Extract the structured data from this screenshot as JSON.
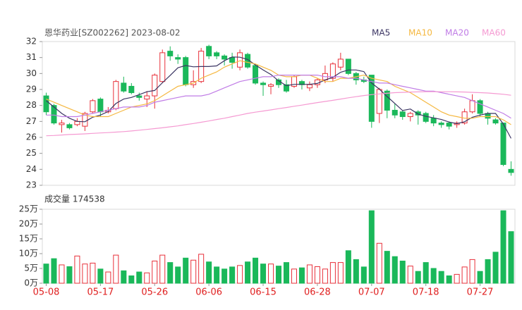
{
  "chart_data": {
    "type": "candlestick",
    "title": "恩华药业[SZ002262] 2023-08-02",
    "volume_title": "成交量 174538",
    "categories": [
      "05-08",
      null,
      null,
      null,
      null,
      null,
      null,
      "05-17",
      null,
      null,
      null,
      null,
      null,
      null,
      "05-26",
      null,
      null,
      null,
      null,
      null,
      null,
      "06-06",
      null,
      null,
      null,
      null,
      null,
      null,
      "06-15",
      null,
      null,
      null,
      null,
      null,
      null,
      "06-28",
      null,
      null,
      null,
      null,
      null,
      null,
      "07-07",
      null,
      null,
      null,
      null,
      null,
      null,
      "07-18",
      null,
      null,
      null,
      null,
      null,
      null,
      "07-27",
      null,
      null,
      null,
      null
    ],
    "open": [
      28.6,
      28.0,
      26.8,
      26.8,
      26.8,
      26.7,
      27.6,
      28.4,
      27.6,
      27.8,
      29.4,
      29.2,
      28.6,
      28.4,
      28.6,
      29.5,
      31.4,
      31.0,
      31.0,
      29.3,
      29.5,
      31.7,
      31.3,
      31.1,
      31.0,
      30.4,
      31.2,
      30.5,
      29.4,
      29.2,
      29.6,
      29.3,
      29.2,
      29.5,
      29.1,
      29.3,
      29.6,
      29.7,
      30.4,
      30.9,
      30.0,
      29.6,
      29.9,
      27.5,
      28.9,
      27.7,
      27.6,
      27.3,
      27.6,
      27.5,
      27.2,
      26.9,
      26.9,
      26.8,
      26.9,
      27.6,
      28.3,
      27.5,
      27.1,
      26.9,
      24.0
    ],
    "high": [
      28.8,
      28.1,
      27.1,
      26.9,
      27.2,
      27.6,
      28.4,
      28.5,
      27.9,
      29.6,
      29.8,
      29.4,
      28.8,
      28.9,
      30.0,
      31.5,
      31.7,
      31.2,
      31.1,
      30.2,
      31.6,
      31.8,
      31.4,
      31.2,
      31.3,
      31.5,
      31.3,
      30.6,
      29.5,
      29.4,
      29.7,
      29.6,
      29.9,
      29.6,
      29.5,
      29.7,
      30.5,
      30.7,
      31.3,
      30.9,
      30.1,
      29.8,
      29.9,
      29.1,
      29.0,
      28.1,
      27.7,
      27.6,
      27.7,
      27.6,
      27.4,
      27.0,
      27.0,
      27.0,
      27.8,
      28.7,
      28.4,
      27.6,
      27.2,
      26.9,
      24.5
    ],
    "low": [
      27.4,
      26.8,
      26.3,
      26.5,
      26.7,
      26.4,
      27.5,
      27.3,
      27.5,
      27.7,
      28.8,
      28.7,
      28.3,
      27.9,
      27.8,
      29.4,
      30.8,
      30.6,
      29.2,
      29.1,
      29.4,
      30.9,
      30.9,
      30.5,
      30.3,
      30.2,
      30.3,
      29.3,
      28.6,
      28.7,
      29.1,
      28.8,
      29.1,
      29.0,
      28.9,
      29.1,
      29.4,
      29.5,
      30.2,
      29.9,
      29.3,
      29.4,
      26.6,
      26.9,
      27.2,
      27.2,
      27.1,
      27.0,
      26.8,
      26.9,
      26.7,
      26.6,
      26.5,
      26.6,
      26.8,
      27.5,
      27.3,
      26.8,
      26.8,
      24.2,
      23.6
    ],
    "close": [
      27.6,
      26.9,
      26.9,
      26.6,
      27.0,
      27.5,
      28.3,
      27.6,
      27.7,
      29.5,
      28.9,
      28.8,
      28.5,
      28.6,
      29.9,
      31.3,
      31.1,
      30.9,
      29.3,
      29.5,
      31.4,
      31.1,
      31.1,
      30.9,
      30.7,
      31.3,
      30.4,
      29.4,
      29.3,
      29.3,
      29.3,
      28.9,
      29.8,
      29.3,
      29.3,
      29.6,
      30.0,
      30.6,
      30.9,
      30.0,
      29.6,
      29.5,
      27.0,
      29.0,
      27.7,
      27.4,
      27.3,
      27.5,
      27.4,
      27.0,
      26.9,
      26.8,
      26.7,
      26.9,
      27.6,
      28.3,
      27.5,
      27.2,
      26.9,
      24.3,
      23.8
    ],
    "volume": [
      6.5,
      8.3,
      6.2,
      5.6,
      9.2,
      6.5,
      6.8,
      4.8,
      3.8,
      9.5,
      4.2,
      2.5,
      3.8,
      3.5,
      7.5,
      9.5,
      7.0,
      5.5,
      8.5,
      7.8,
      9.8,
      7.2,
      5.5,
      4.8,
      5.5,
      6.0,
      7.2,
      8.5,
      6.5,
      6.5,
      5.8,
      7.0,
      4.8,
      5.2,
      6.2,
      5.6,
      4.8,
      7.0,
      7.0,
      11.0,
      8.0,
      5.5,
      24.5,
      13.5,
      10.8,
      9.0,
      7.5,
      5.8,
      4.0,
      7.0,
      5.0,
      4.0,
      2.5,
      3.0,
      5.5,
      8.0,
      4.0,
      8.0,
      10.5,
      24.5,
      17.45
    ],
    "up_color": "#e8303a",
    "down_color": "#1ab85a",
    "category_color": "#e02020",
    "series": [
      {
        "name": "MA5",
        "color": "#3b3563",
        "values": [
          28.3,
          27.9,
          27.5,
          27.2,
          27.0,
          26.98,
          27.26,
          27.4,
          27.62,
          28.12,
          28.4,
          28.5,
          28.68,
          28.86,
          28.94,
          29.42,
          29.88,
          30.36,
          30.5,
          30.42,
          30.44,
          30.44,
          30.48,
          30.8,
          31.04,
          31.02,
          30.88,
          30.54,
          30.22,
          29.94,
          29.54,
          29.24,
          29.32,
          29.32,
          29.32,
          29.38,
          29.6,
          29.76,
          30.08,
          30.22,
          30.22,
          30.12,
          29.4,
          29.02,
          28.56,
          28.12,
          27.68,
          27.78,
          27.46,
          27.32,
          27.22,
          27.12,
          26.96,
          26.86,
          26.98,
          27.26,
          27.4,
          27.5,
          27.5,
          26.84,
          25.94
        ]
      },
      {
        "name": "MA10",
        "color": "#f5b841",
        "values": [
          28.4,
          28.2,
          28.0,
          27.8,
          27.6,
          27.4,
          27.3,
          27.3,
          27.3,
          27.5,
          27.7,
          27.9,
          28.0,
          28.1,
          28.3,
          28.6,
          28.9,
          29.2,
          29.3,
          29.4,
          29.7,
          29.9,
          30.1,
          30.4,
          30.6,
          30.8,
          30.7,
          30.6,
          30.4,
          30.2,
          29.9,
          29.8,
          29.8,
          29.9,
          29.9,
          29.7,
          29.5,
          29.5,
          29.7,
          29.7,
          29.8,
          29.9,
          29.7,
          29.6,
          29.5,
          29.2,
          29.0,
          28.8,
          28.5,
          28.2,
          27.9,
          27.6,
          27.4,
          27.3,
          27.2,
          27.2,
          27.3,
          27.3,
          27.3,
          27.1,
          26.8
        ]
      },
      {
        "name": "MA20",
        "color": "#c07ce6",
        "values": [
          27.4,
          27.4,
          27.3,
          27.3,
          27.3,
          27.4,
          27.5,
          27.6,
          27.7,
          27.8,
          27.9,
          27.9,
          27.9,
          28.0,
          28.2,
          28.3,
          28.4,
          28.5,
          28.6,
          28.6,
          28.6,
          28.7,
          28.9,
          29.1,
          29.3,
          29.5,
          29.6,
          29.7,
          29.8,
          29.8,
          29.9,
          29.9,
          29.9,
          29.9,
          29.9,
          29.9,
          29.8,
          29.8,
          29.8,
          29.7,
          29.7,
          29.6,
          29.5,
          29.4,
          29.4,
          29.3,
          29.2,
          29.1,
          29.0,
          28.9,
          28.9,
          28.8,
          28.7,
          28.6,
          28.5,
          28.3,
          28.1,
          27.9,
          27.7,
          27.5,
          27.2
        ]
      },
      {
        "name": "MA60",
        "color": "#f59ad2",
        "values": [
          26.1,
          26.12,
          26.15,
          26.18,
          26.2,
          26.22,
          26.25,
          26.28,
          26.3,
          26.33,
          26.36,
          26.4,
          26.45,
          26.5,
          26.55,
          26.6,
          26.66,
          26.72,
          26.8,
          26.87,
          26.95,
          27.03,
          27.12,
          27.2,
          27.3,
          27.4,
          27.5,
          27.58,
          27.65,
          27.72,
          27.8,
          27.87,
          27.95,
          28.02,
          28.1,
          28.18,
          28.25,
          28.32,
          28.4,
          28.48,
          28.55,
          28.62,
          28.68,
          28.72,
          28.76,
          28.8,
          28.82,
          28.84,
          28.85,
          28.86,
          28.86,
          28.86,
          28.86,
          28.85,
          28.84,
          28.82,
          28.8,
          28.78,
          28.74,
          28.7,
          28.64
        ]
      }
    ],
    "ylim": [
      23,
      32
    ],
    "yticks": [
      23,
      24,
      25,
      26,
      27,
      28,
      29,
      30,
      31,
      32
    ],
    "vlim": [
      0,
      25
    ],
    "vticks": [
      {
        "value": 0,
        "label": "0万"
      },
      {
        "value": 5,
        "label": "5万"
      },
      {
        "value": 10,
        "label": "10万"
      },
      {
        "value": 15,
        "label": "15万"
      },
      {
        "value": 20,
        "label": "20万"
      },
      {
        "value": 25,
        "label": "25万"
      }
    ]
  }
}
